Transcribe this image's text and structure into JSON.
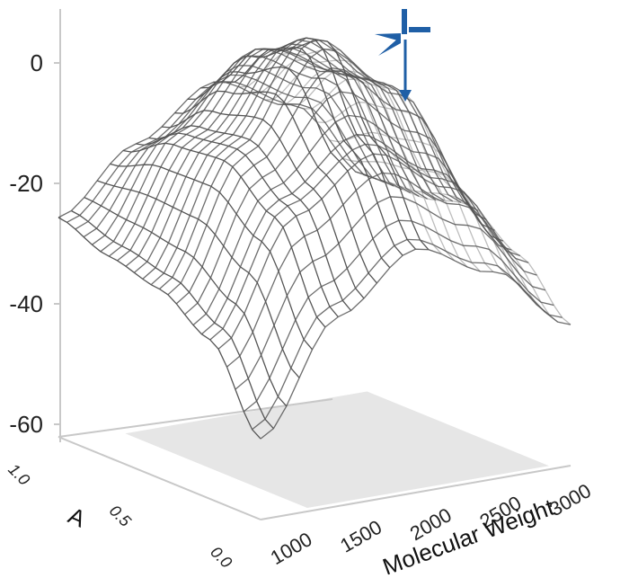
{
  "colors": {
    "axis": "#c8c8c8",
    "floor": "#e6e6e6",
    "mesh_front": "#555555",
    "mesh_back": "#bdbdbd",
    "marker": "#1f5fa6"
  },
  "chart_data": {
    "type": "surface",
    "title": "",
    "xlabel": "Molecular Weight",
    "ylabel": "A",
    "zlabel": "",
    "x_ticks": [
      "1000",
      "1500",
      "2000",
      "2500",
      "3000"
    ],
    "y_ticks": [
      "0.0",
      "0.5",
      "1.0"
    ],
    "z_ticks": [
      "0",
      "-20",
      "-40",
      "-60"
    ],
    "xlim": [
      1000,
      3000
    ],
    "ylim": [
      0.0,
      1.0
    ],
    "zlim": [
      -60,
      0
    ],
    "grid": false,
    "x": [
      1000,
      1500,
      2000,
      2500,
      3000
    ],
    "y": [
      0.0,
      0.25,
      0.5,
      0.75,
      1.0
    ],
    "z": [
      [
        -63,
        -45,
        -36,
        -42,
        -53
      ],
      [
        -50,
        -30,
        -22,
        -30,
        -45
      ],
      [
        -45,
        -24,
        -8,
        -18,
        -40
      ],
      [
        -43,
        -25,
        -13,
        -19,
        -42
      ],
      [
        -40,
        -30,
        -22,
        -28,
        -42
      ]
    ],
    "optimum": {
      "molecular_weight": 2100,
      "A": 0.5,
      "value": -7.5,
      "marker_icon": "crosshair-target-icon"
    }
  }
}
